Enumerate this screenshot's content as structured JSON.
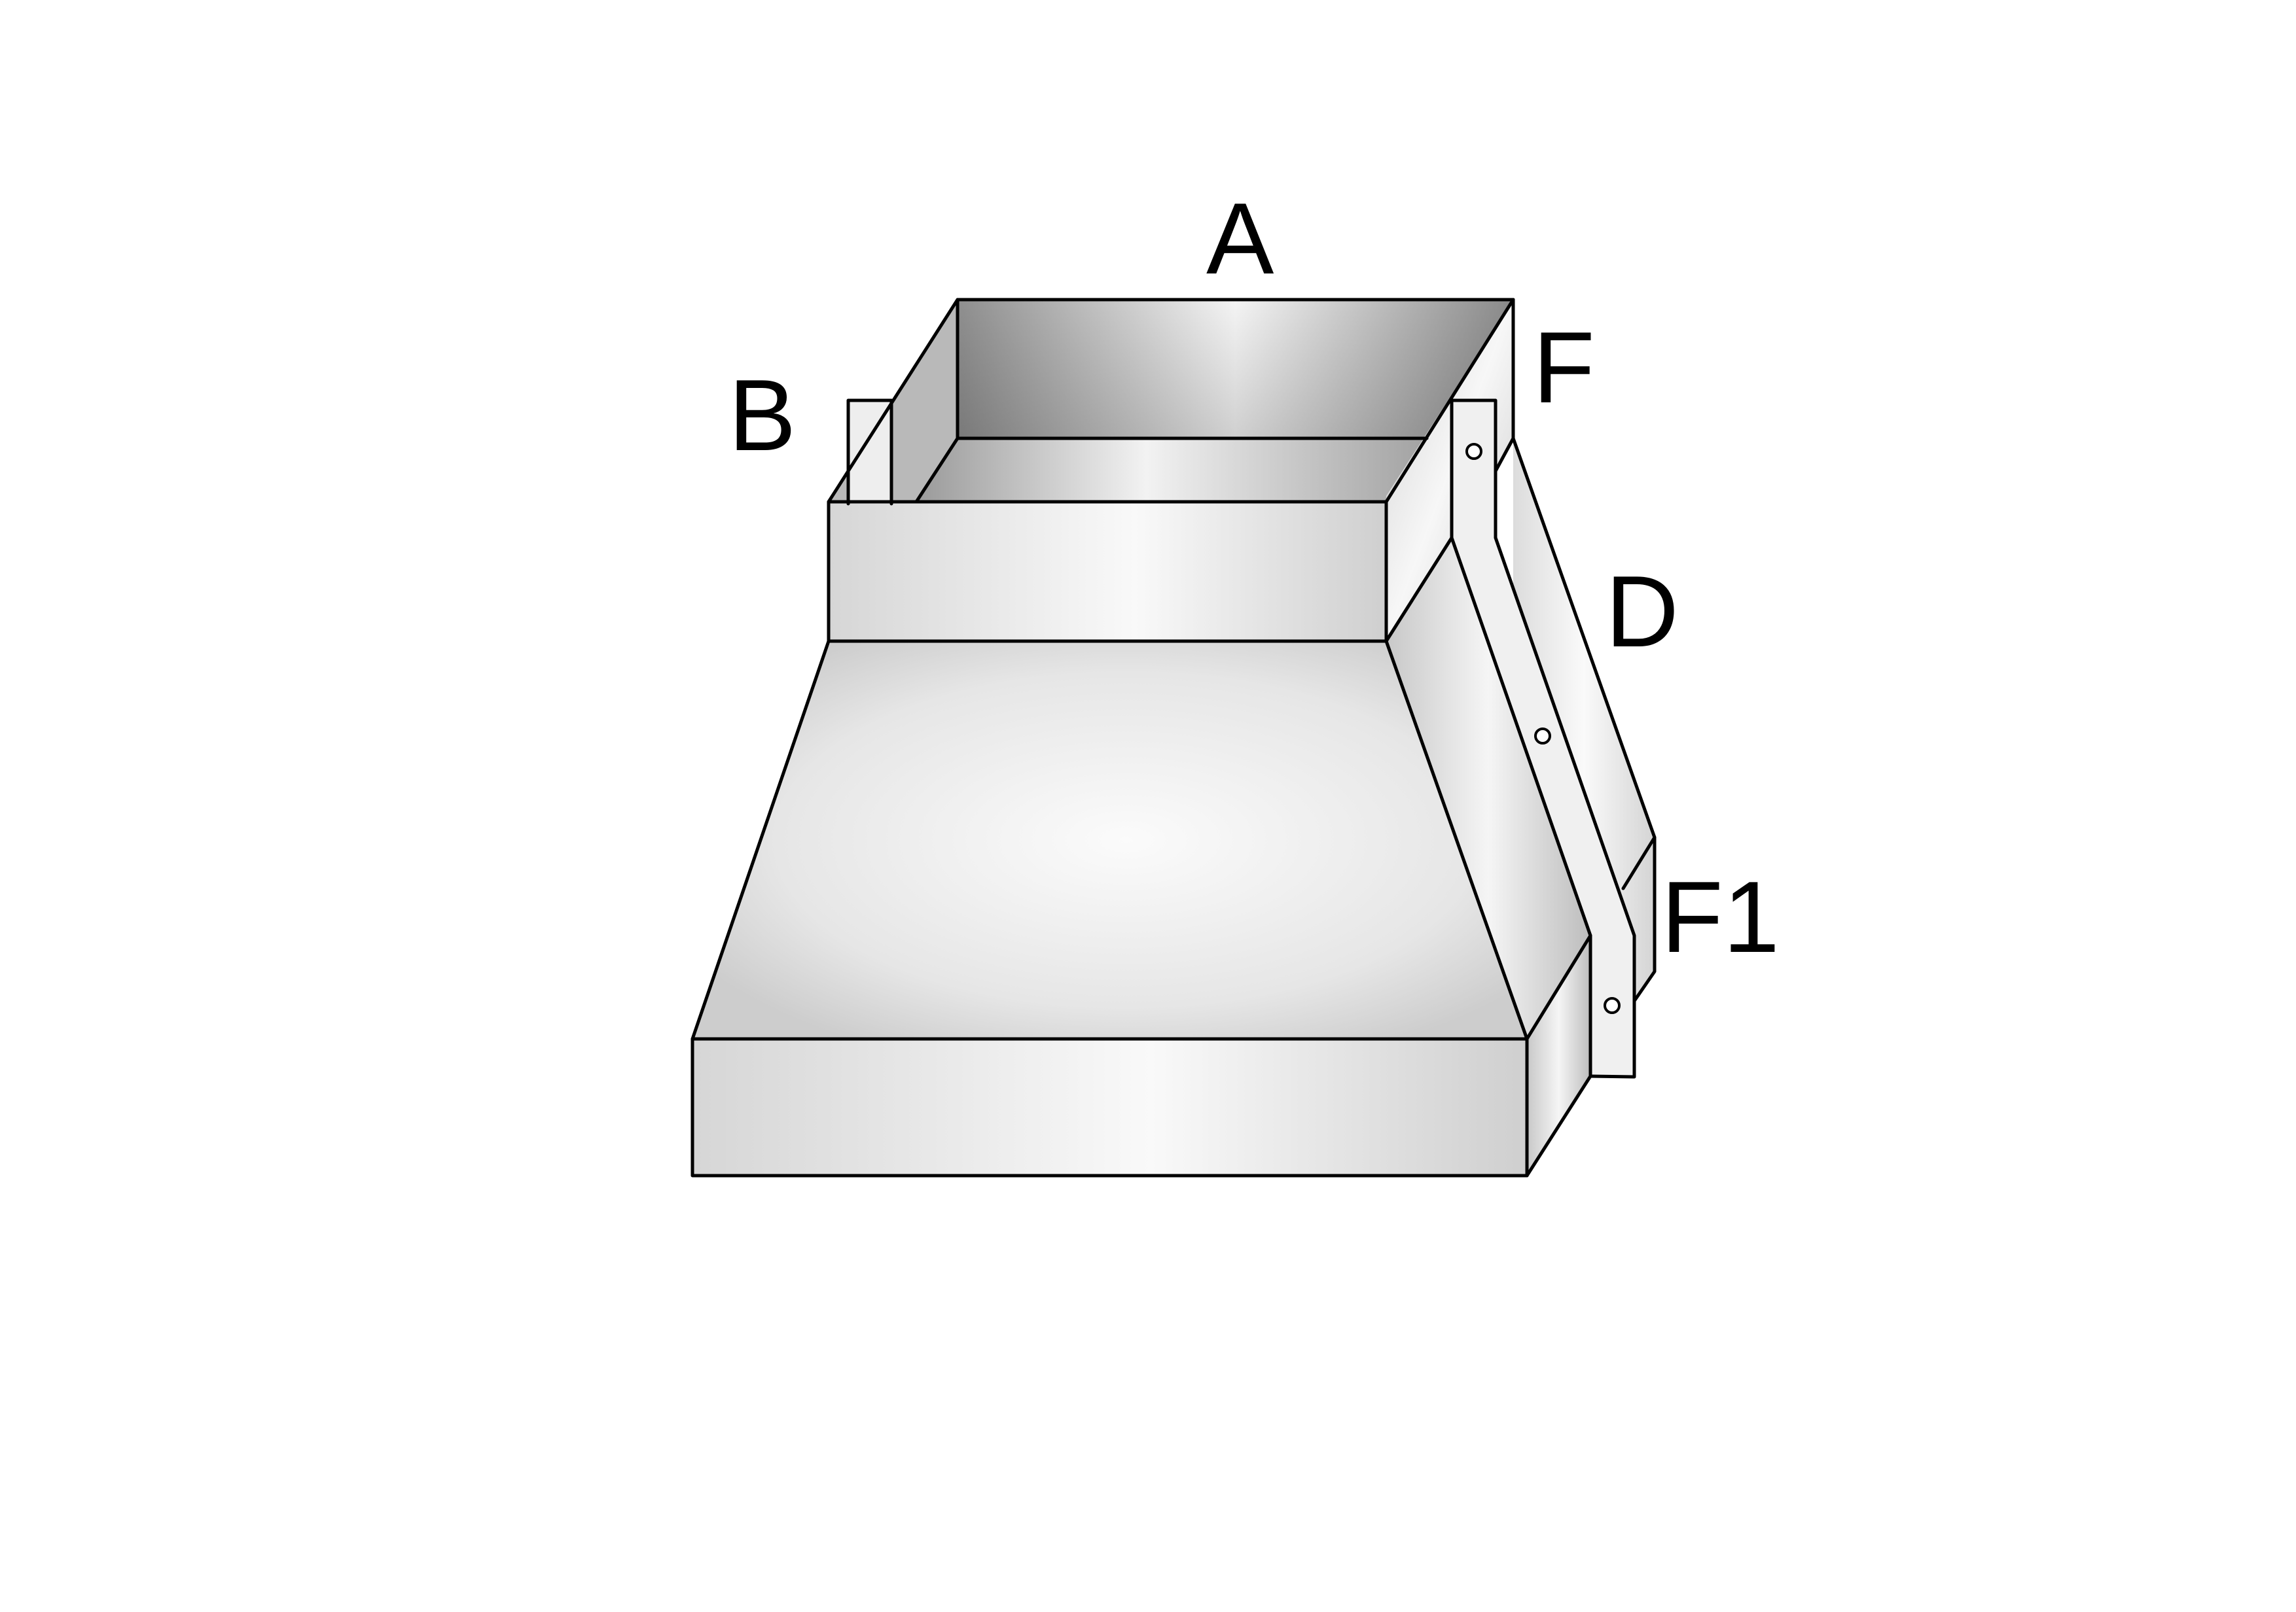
{
  "diagram": {
    "labels": {
      "a": "A",
      "b": "B",
      "f": "F",
      "d": "D",
      "f1": "F1"
    }
  }
}
